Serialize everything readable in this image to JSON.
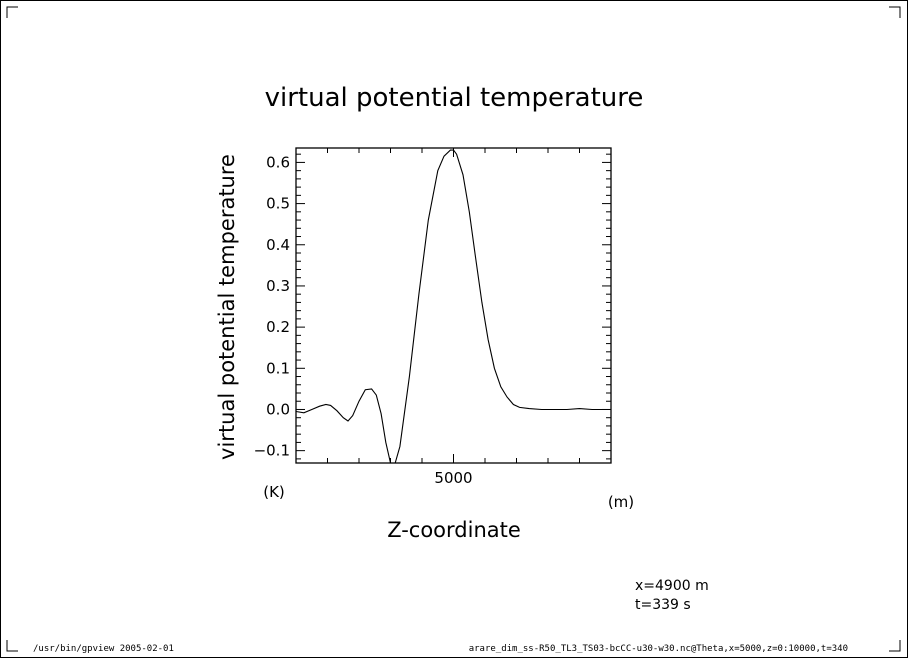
{
  "chart_data": {
    "type": "line",
    "title": "virtual potential temperature",
    "ylabel": "virtual potential temperature",
    "yunit": "(K)",
    "xlabel": "Z-coordinate",
    "xunit": "(m)",
    "xlim": [
      0,
      10000
    ],
    "ylim": [
      -0.13,
      0.635
    ],
    "xticks_major": [
      5000
    ],
    "xticks_minor": [
      1000,
      2000,
      3000,
      4000,
      6000,
      7000,
      8000,
      9000
    ],
    "yticks_major": [
      -0.1,
      0.0,
      0.1,
      0.2,
      0.3,
      0.4,
      0.5,
      0.6
    ],
    "ytick_labels": [
      "−0.1",
      "0.0",
      "0.1",
      "0.2",
      "0.3",
      "0.4",
      "0.5",
      "0.6"
    ],
    "grid": false,
    "series": [
      {
        "x": [
          0,
          250,
          500,
          750,
          950,
          1100,
          1300,
          1500,
          1650,
          1800,
          2000,
          2200,
          2400,
          2550,
          2700,
          2850,
          3000,
          3150,
          3300,
          3600,
          3900,
          4200,
          4500,
          4700,
          4900,
          5000,
          5100,
          5300,
          5500,
          5700,
          5900,
          6100,
          6300,
          6500,
          6700,
          6900,
          7100,
          7400,
          7800,
          8200,
          8600,
          9000,
          9400,
          9800,
          10000
        ],
        "y": [
          -0.005,
          -0.008,
          0.0,
          0.008,
          0.012,
          0.01,
          -0.003,
          -0.02,
          -0.028,
          -0.015,
          0.02,
          0.048,
          0.05,
          0.035,
          -0.01,
          -0.08,
          -0.13,
          -0.13,
          -0.09,
          0.08,
          0.28,
          0.46,
          0.58,
          0.615,
          0.63,
          0.63,
          0.62,
          0.57,
          0.48,
          0.37,
          0.26,
          0.17,
          0.1,
          0.055,
          0.03,
          0.012,
          0.005,
          0.002,
          0.0,
          0.0,
          0.0,
          0.002,
          0.0,
          0.0,
          0.0
        ]
      }
    ]
  },
  "info": {
    "x_line": "x=4900  m",
    "t_line": "t=339  s"
  },
  "footer": {
    "left": "/usr/bin/gpview  2005-02-01",
    "right": "arare_dim_ss-R50_TL3_TS03-bcCC-u30-w30.nc@Theta,x=5000,z=0:10000,t=340"
  }
}
